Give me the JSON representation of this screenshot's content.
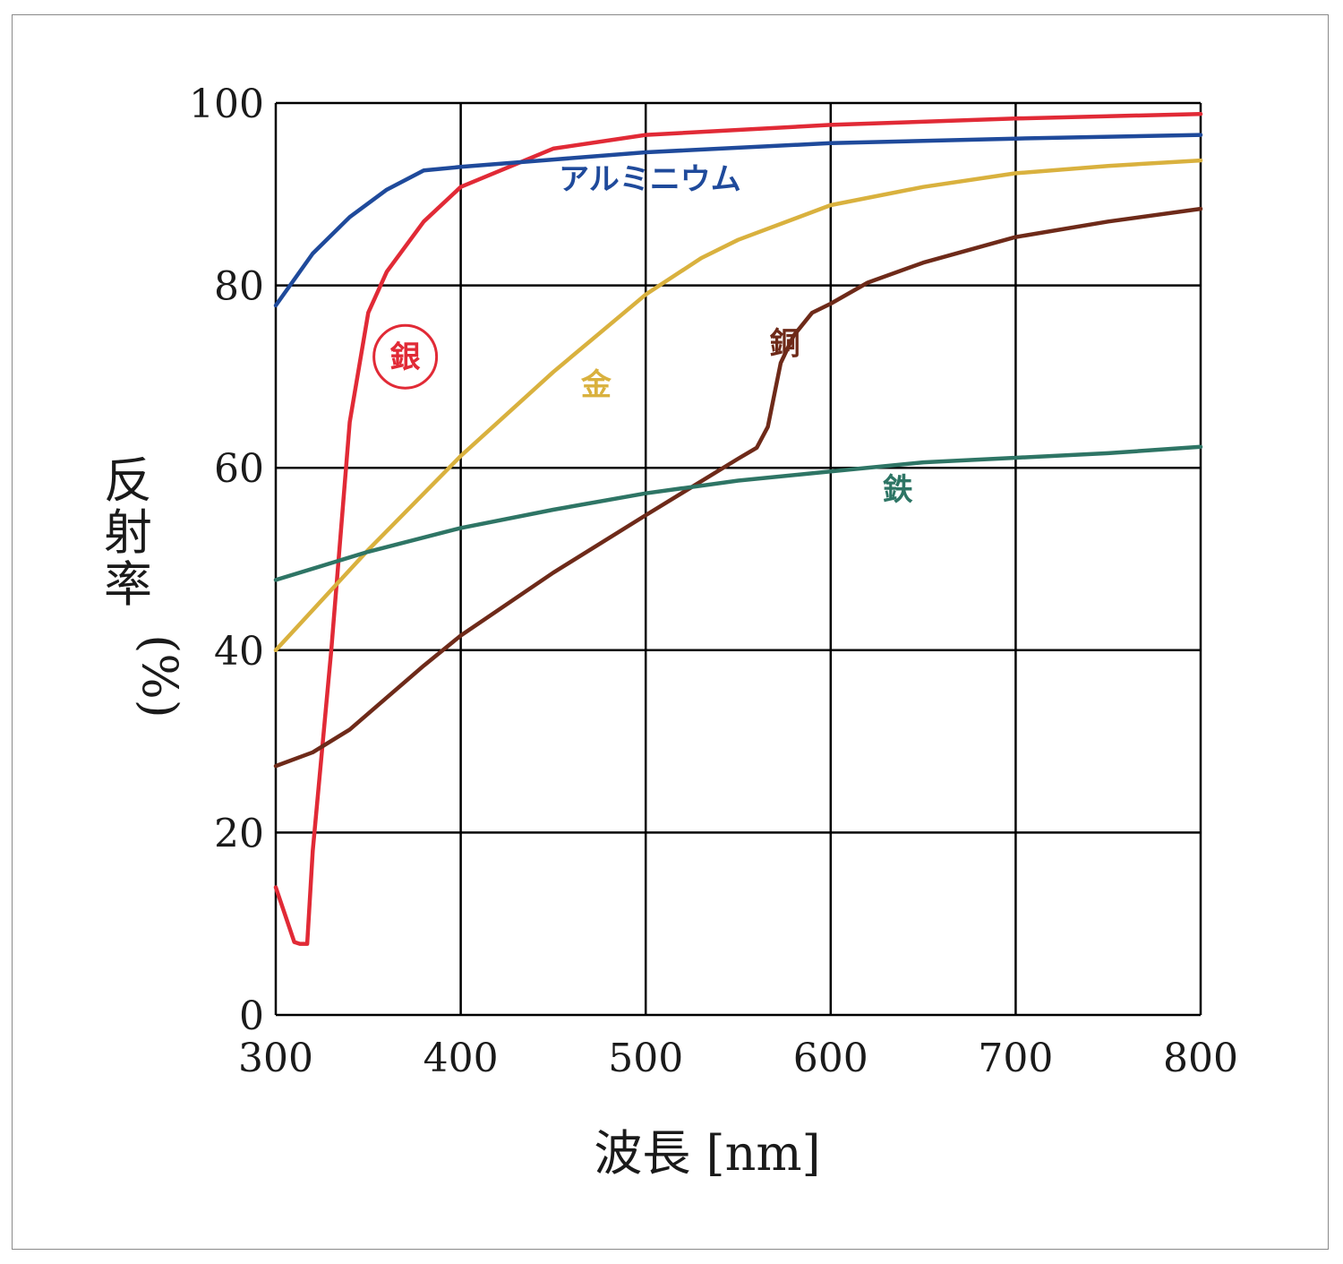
{
  "chart_data": {
    "type": "line",
    "title": "",
    "xlabel": "波長 [nm]",
    "ylabel": "反射率 (%)",
    "xlim": [
      300,
      800
    ],
    "ylim": [
      0,
      100
    ],
    "xticks": [
      300,
      400,
      500,
      600,
      700,
      800
    ],
    "yticks": [
      0,
      20,
      40,
      60,
      80,
      100
    ],
    "grid": true,
    "legend": "inline labels",
    "series": [
      {
        "name": "銀",
        "color": "#e12a36",
        "label_circled": true,
        "x": [
          300,
          310,
          313,
          317,
          320,
          330,
          340,
          350,
          360,
          380,
          400,
          450,
          500,
          600,
          700,
          800
        ],
        "y": [
          14,
          8,
          7.8,
          7.8,
          18,
          40,
          65,
          77,
          81.5,
          87,
          90.8,
          95,
          96.5,
          97.6,
          98.3,
          98.8
        ],
        "label_at": [
          370,
          71
        ]
      },
      {
        "name": "アルミニウム",
        "color": "#1f4a9b",
        "x": [
          300,
          320,
          340,
          360,
          380,
          400,
          450,
          500,
          600,
          700,
          800
        ],
        "y": [
          77.8,
          83.5,
          87.5,
          90.5,
          92.6,
          93,
          93.8,
          94.6,
          95.6,
          96.1,
          96.5
        ],
        "label_at": [
          453,
          90.5
        ]
      },
      {
        "name": "金",
        "color": "#d9b13e",
        "x": [
          300,
          350,
          400,
          450,
          500,
          530,
          550,
          600,
          650,
          700,
          750,
          800
        ],
        "y": [
          40,
          51,
          61.3,
          70.5,
          79,
          83,
          85,
          88.8,
          90.8,
          92.3,
          93.1,
          93.7
        ],
        "label_at": [
          465,
          68
        ]
      },
      {
        "name": "銅",
        "color": "#6e2a19",
        "x": [
          300,
          320,
          340,
          360,
          380,
          400,
          450,
          500,
          550,
          560,
          566,
          570,
          573,
          580,
          590,
          600,
          620,
          650,
          700,
          750,
          800
        ],
        "y": [
          27.3,
          28.8,
          31.3,
          34.8,
          38.3,
          41.6,
          48.5,
          54.8,
          61,
          62.2,
          64.5,
          68.5,
          71.5,
          74.5,
          77,
          78,
          80.3,
          82.5,
          85.3,
          87,
          88.4
        ],
        "label_at": [
          567,
          72.5
        ]
      },
      {
        "name": "鉄",
        "color": "#2e7565",
        "x": [
          300,
          350,
          400,
          450,
          500,
          550,
          600,
          650,
          700,
          750,
          800
        ],
        "y": [
          47.7,
          50.8,
          53.4,
          55.4,
          57.2,
          58.6,
          59.6,
          60.6,
          61.1,
          61.6,
          62.3
        ],
        "label_at": [
          628,
          56.5
        ]
      }
    ]
  }
}
